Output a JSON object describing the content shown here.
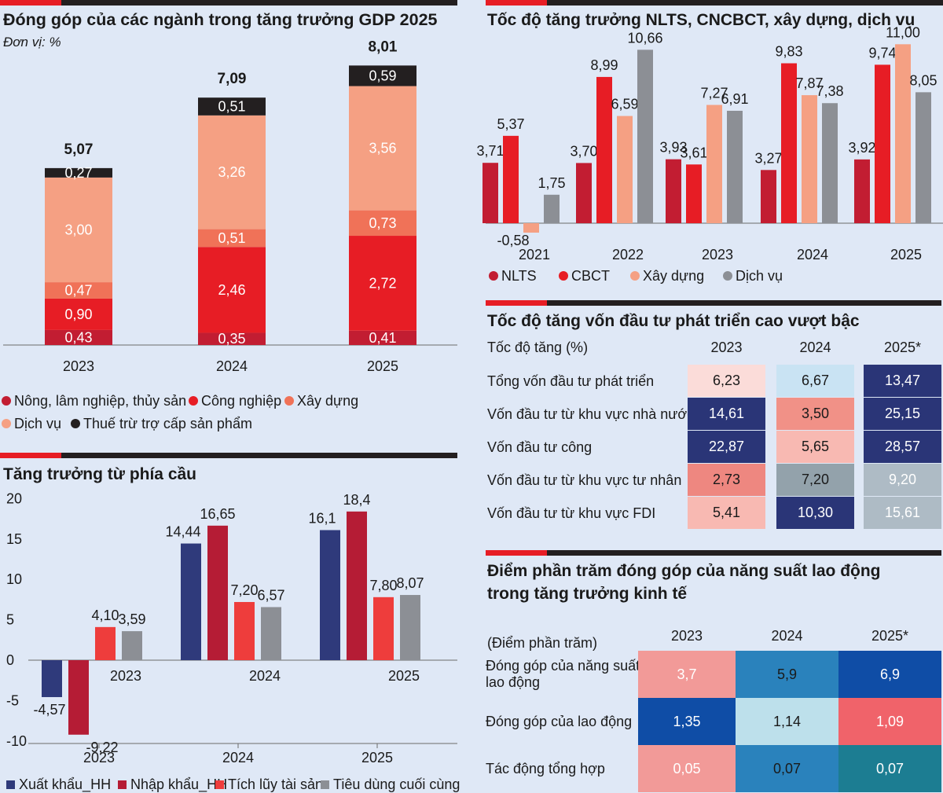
{
  "colors": {
    "red": "#e71d25",
    "dark": "#231f20",
    "crimson": "#c21d32",
    "orange": "#f07258",
    "salmon": "#f5a083",
    "grey": "#8c8f95",
    "navy": "#2f3a7b",
    "bg": "#dfe8f6"
  },
  "p1": {
    "title": "Đóng góp của các ngành trong tăng trưởng GDP 2025",
    "unit": "Đơn vị: %",
    "chart_data": {
      "type": "bar",
      "stacked": true,
      "categories": [
        "2023",
        "2024",
        "2025"
      ],
      "totals": [
        "5,07",
        "7,09",
        "8,01"
      ],
      "series": [
        {
          "name": "Nông, lâm nghiệp, thủy sản",
          "color": "#c21d32",
          "values": [
            0.43,
            0.35,
            0.41
          ],
          "labels": [
            "0,43",
            "0,35",
            "0,41"
          ]
        },
        {
          "name": "Công nghiệp",
          "color": "#e71d25",
          "values": [
            0.9,
            2.46,
            2.72
          ],
          "labels": [
            "0,90",
            "2,46",
            "2,72"
          ]
        },
        {
          "name": "Xây dựng",
          "color": "#f07258",
          "values": [
            0.47,
            0.51,
            0.73
          ],
          "labels": [
            "0,47",
            "0,51",
            "0,73"
          ]
        },
        {
          "name": "Dịch vụ",
          "color": "#f5a083",
          "values": [
            3.0,
            3.26,
            3.56
          ],
          "labels": [
            "3,00",
            "3,26",
            "3,56"
          ]
        },
        {
          "name": "Thuế trừ trợ cấp sản phẩm",
          "color": "#231f20",
          "values": [
            0.27,
            0.51,
            0.59
          ],
          "labels": [
            "0,27",
            "0,51",
            "0,59"
          ]
        }
      ]
    }
  },
  "p2": {
    "title": "Tốc độ tăng trưởng NLTS, CNCBCT, xây dựng, dịch vụ",
    "chart_data": {
      "type": "bar",
      "categories": [
        "2021",
        "2022",
        "2023",
        "2024",
        "2025"
      ],
      "series": [
        {
          "name": "NLTS",
          "color": "#c21d32",
          "values": [
            3.71,
            3.7,
            3.93,
            3.27,
            3.92
          ],
          "labels": [
            "3,71",
            "3,70",
            "3,93",
            "3,27",
            "3,92"
          ]
        },
        {
          "name": "CBCT",
          "color": "#e71d25",
          "values": [
            5.37,
            8.99,
            3.61,
            9.83,
            9.74
          ],
          "labels": [
            "5,37",
            "8,99",
            "3,61",
            "9,83",
            "9,74"
          ]
        },
        {
          "name": "Xây dựng",
          "color": "#f5a083",
          "values": [
            -0.58,
            6.59,
            7.27,
            7.87,
            11.0
          ],
          "labels": [
            "-0,58",
            "6,59",
            "7,27",
            "7,87",
            "11,00"
          ]
        },
        {
          "name": "Dịch vụ",
          "color": "#8c8f95",
          "values": [
            1.75,
            10.66,
            6.91,
            7.38,
            8.05
          ],
          "labels": [
            "1,75",
            "10,66",
            "6,91",
            "7,38",
            "8,05"
          ]
        }
      ]
    }
  },
  "p3": {
    "title": "Tăng trưởng từ phía cầu",
    "chart_data": {
      "type": "bar",
      "categories": [
        "2023",
        "2024",
        "2025"
      ],
      "ylim": [
        -10,
        20
      ],
      "yticks": [
        "20",
        "15",
        "10",
        "5",
        "0",
        "-5",
        "-10"
      ],
      "series": [
        {
          "name": "Xuất khẩu_HH",
          "color": "#2f3a7b",
          "values": [
            -4.57,
            14.44,
            16.1
          ],
          "labels": [
            "-4,57",
            "14,44",
            "16,1"
          ]
        },
        {
          "name": "Nhập khẩu_HH",
          "color": "#b51c35",
          "values": [
            -9.22,
            16.65,
            18.4
          ],
          "labels": [
            "-9,22",
            "16,65",
            "18,4"
          ]
        },
        {
          "name": "Tích lũy tài sản",
          "color": "#ee3d3c",
          "values": [
            4.1,
            7.2,
            7.8
          ],
          "labels": [
            "4,10",
            "7,20",
            "7,80"
          ]
        },
        {
          "name": "Tiêu dùng cuối cùng",
          "color": "#8c8f95",
          "values": [
            3.59,
            6.57,
            8.07
          ],
          "labels": [
            "3,59",
            "6,57",
            "8,07"
          ]
        }
      ]
    }
  },
  "t1": {
    "title": "Tốc độ tăng vốn đầu tư phát triển cao vượt bậc",
    "head": "Tốc độ tăng (%)",
    "cols": [
      "2023",
      "2024",
      "2025*"
    ],
    "rows": [
      {
        "label": "Tổng vốn đầu tư phát triển",
        "cells": [
          {
            "v": "6,23",
            "bg": "#fbdcd9",
            "fg": "#1a1a1a"
          },
          {
            "v": "6,67",
            "bg": "#c9e3f3",
            "fg": "#1a1a1a"
          },
          {
            "v": "13,47",
            "bg": "#2a3577",
            "fg": "#ffffff"
          }
        ]
      },
      {
        "label": "Vốn đầu tư từ khu vực nhà nước",
        "cells": [
          {
            "v": "14,61",
            "bg": "#2a3577",
            "fg": "#ffffff"
          },
          {
            "v": "3,50",
            "bg": "#f19187",
            "fg": "#1a1a1a"
          },
          {
            "v": "25,15",
            "bg": "#2a3577",
            "fg": "#ffffff"
          }
        ]
      },
      {
        "label": "Vốn đầu tư công",
        "cells": [
          {
            "v": "22,87",
            "bg": "#2a3577",
            "fg": "#ffffff"
          },
          {
            "v": "5,65",
            "bg": "#f8b9b2",
            "fg": "#1a1a1a"
          },
          {
            "v": "28,57",
            "bg": "#2a3577",
            "fg": "#ffffff"
          }
        ]
      },
      {
        "label": "Vốn đầu tư từ khu vực tư nhân",
        "cells": [
          {
            "v": "2,73",
            "bg": "#ee8780",
            "fg": "#1a1a1a"
          },
          {
            "v": "7,20",
            "bg": "#93a2ab",
            "fg": "#1a1a1a"
          },
          {
            "v": "9,20",
            "bg": "#aebbc5",
            "fg": "#ffffff"
          }
        ]
      },
      {
        "label": "Vốn đầu tư từ khu vực FDI",
        "cells": [
          {
            "v": "5,41",
            "bg": "#f8b9b2",
            "fg": "#1a1a1a"
          },
          {
            "v": "10,30",
            "bg": "#2a3577",
            "fg": "#ffffff"
          },
          {
            "v": "15,61",
            "bg": "#aebbc5",
            "fg": "#ffffff"
          }
        ]
      }
    ]
  },
  "t2": {
    "title1": "Điểm phần trăm đóng góp của năng suất lao động",
    "title2": "trong tăng trưởng kinh tế",
    "head": "(Điểm phần trăm)",
    "cols": [
      "2023",
      "2024",
      "2025*"
    ],
    "rows": [
      {
        "label1": "Đóng góp của năng suất",
        "label2": "lao động",
        "cells": [
          {
            "v": "3,7",
            "bg": "#f29a98",
            "fg": "#ffffff"
          },
          {
            "v": "5,9",
            "bg": "#2a82bc",
            "fg": "#1a1a1a"
          },
          {
            "v": "6,9",
            "bg": "#0f4da6",
            "fg": "#ffffff"
          }
        ]
      },
      {
        "label1": "Đóng góp của lao động",
        "label2": "",
        "cells": [
          {
            "v": "1,35",
            "bg": "#0f4da6",
            "fg": "#ffffff"
          },
          {
            "v": "1,14",
            "bg": "#bde0eb",
            "fg": "#1a1a1a"
          },
          {
            "v": "1,09",
            "bg": "#f0636a",
            "fg": "#ffffff"
          }
        ]
      },
      {
        "label1": "Tác động tổng hợp",
        "label2": "",
        "cells": [
          {
            "v": "0,05",
            "bg": "#f29a98",
            "fg": "#ffffff"
          },
          {
            "v": "0,07",
            "bg": "#2a82bc",
            "fg": "#1a1a1a"
          },
          {
            "v": "0,07",
            "bg": "#1c7d92",
            "fg": "#ffffff"
          }
        ]
      }
    ]
  }
}
